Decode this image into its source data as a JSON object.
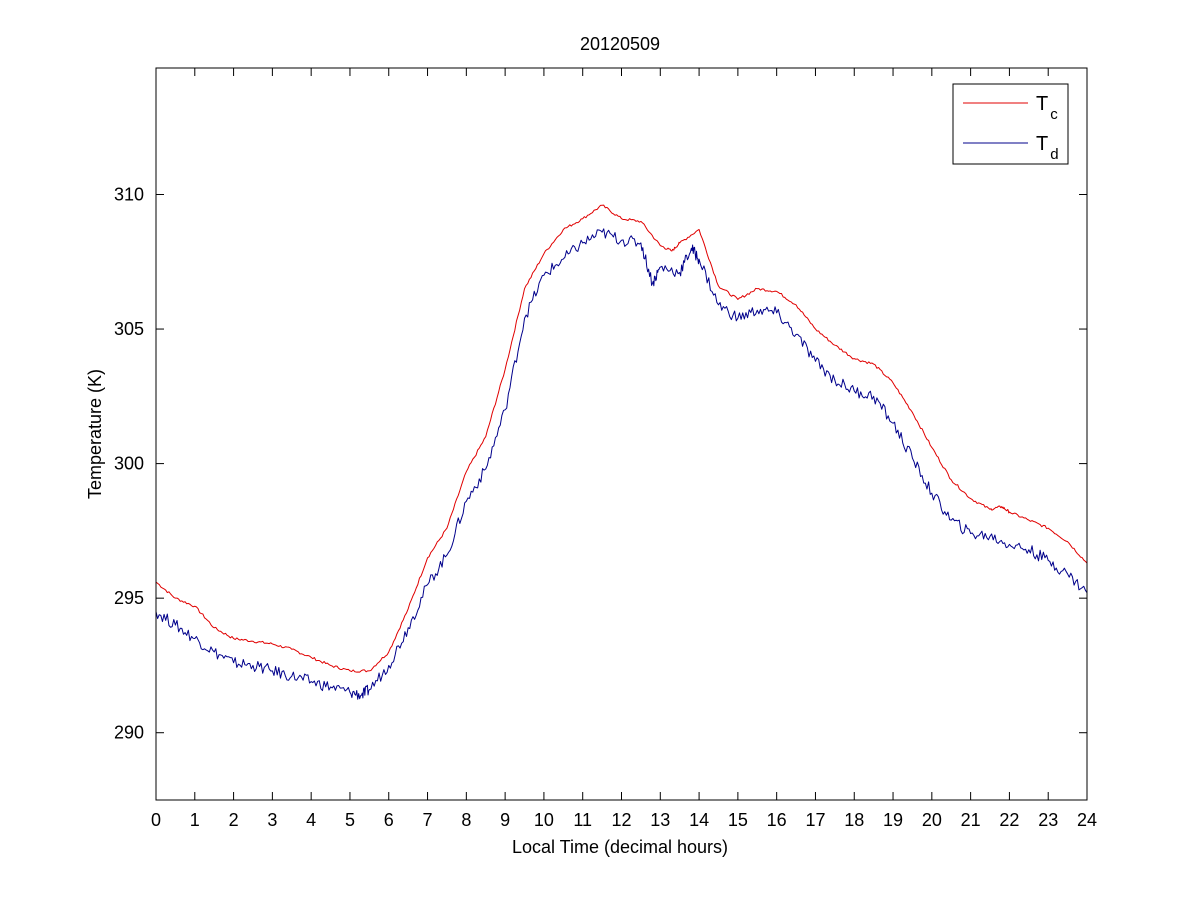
{
  "chart_data": {
    "type": "line",
    "title": "20120509",
    "xlabel": "Local Time (decimal hours)",
    "ylabel": "Temperature (K)",
    "xlim": [
      0,
      24
    ],
    "ylim": [
      287.5,
      314.7
    ],
    "xticks": [
      0,
      1,
      2,
      3,
      4,
      5,
      6,
      7,
      8,
      9,
      10,
      11,
      12,
      13,
      14,
      15,
      16,
      17,
      18,
      19,
      20,
      21,
      22,
      23,
      24
    ],
    "xtick_labels": [
      "0",
      "1",
      "2",
      "3",
      "4",
      "5",
      "6",
      "7",
      "8",
      "9",
      "10",
      "11",
      "12",
      "13",
      "14",
      "15",
      "16",
      "17",
      "18",
      "19",
      "20",
      "21",
      "22",
      "23",
      "24"
    ],
    "yticks": [
      290,
      295,
      300,
      305,
      310
    ],
    "ytick_labels": [
      "290",
      "295",
      "300",
      "305",
      "310"
    ],
    "grid": false,
    "legend_position": "top-right",
    "series": [
      {
        "name": "T",
        "subscript": "c",
        "color": "#e00000",
        "x": [
          0,
          0.5,
          1,
          1.5,
          2,
          2.5,
          3,
          3.5,
          4,
          4.5,
          5,
          5.5,
          6,
          6.5,
          7,
          7.5,
          8,
          8.5,
          9,
          9.5,
          10,
          10.5,
          11,
          11.5,
          12,
          12.5,
          13,
          13.3,
          13.5,
          14,
          14.5,
          15,
          15.5,
          16,
          16.5,
          17,
          17.5,
          18,
          18.5,
          19,
          19.5,
          20,
          20.5,
          21,
          21.5,
          21.8,
          22,
          22.5,
          23,
          23.5,
          24
        ],
        "values": [
          295.6,
          295,
          294.7,
          293.9,
          293.5,
          293.4,
          293.3,
          293.1,
          292.8,
          292.5,
          292.3,
          292.3,
          293,
          294.6,
          296.5,
          297.6,
          299.7,
          301,
          303.5,
          306.5,
          307.8,
          308.7,
          309.1,
          309.6,
          309.1,
          309,
          308.1,
          307.9,
          308.2,
          308.7,
          306.6,
          306.1,
          306.5,
          306.4,
          305.9,
          305,
          304.4,
          303.9,
          303.7,
          303,
          301.9,
          300.6,
          299.4,
          298.7,
          298.3,
          298.4,
          298.2,
          297.9,
          297.6,
          297.1,
          296.3
        ]
      },
      {
        "name": "T",
        "subscript": "d",
        "color": "#00008b",
        "x": [
          0,
          0.5,
          1,
          1.5,
          2,
          2.5,
          3,
          3.5,
          4,
          4.5,
          5,
          5.3,
          5.5,
          6,
          6.5,
          7,
          7.5,
          8,
          8.5,
          9,
          9.5,
          10,
          10.5,
          11,
          11.5,
          12,
          12.5,
          12.8,
          13,
          13.5,
          13.8,
          14,
          14.5,
          15,
          15.5,
          16,
          16.5,
          17,
          17.5,
          18,
          18.5,
          19,
          19.5,
          20,
          20.5,
          21,
          21.5,
          22,
          22.5,
          23,
          23.5,
          24
        ],
        "values": [
          294.5,
          294,
          293.5,
          293,
          292.6,
          292.5,
          292.3,
          292.1,
          291.9,
          291.7,
          291.5,
          291.4,
          291.6,
          292.5,
          293.9,
          295.5,
          296.6,
          298.6,
          299.8,
          302,
          305.4,
          307,
          307.6,
          308.2,
          308.6,
          308.3,
          308.2,
          306.7,
          307.3,
          307.1,
          308,
          307.6,
          305.9,
          305.4,
          305.7,
          305.6,
          304.8,
          303.8,
          303.1,
          302.7,
          302.5,
          301.5,
          300.2,
          298.9,
          297.9,
          297.4,
          297.3,
          297,
          296.8,
          296.4,
          295.9,
          295.2
        ]
      }
    ]
  }
}
